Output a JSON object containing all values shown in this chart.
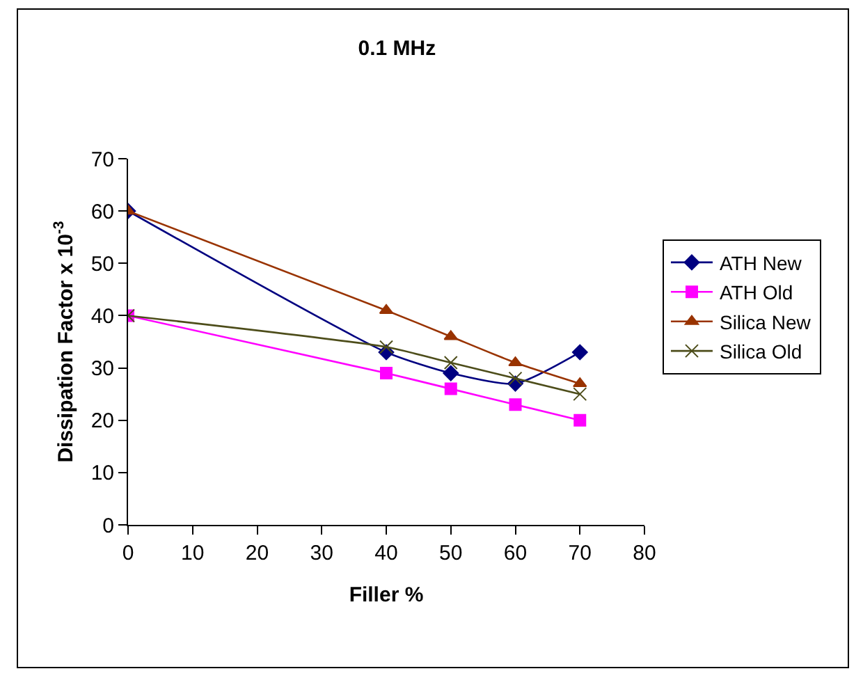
{
  "chart_data": {
    "type": "line",
    "title": "0.1 MHz",
    "xlabel": "Filler %",
    "ylabel": "Dissipation Factor x 10$^{-3}$",
    "x": [
      0,
      40,
      50,
      60,
      70
    ],
    "series": [
      {
        "name": "ATH New",
        "color": "#000080",
        "marker": "diamond",
        "values": [
          60,
          33,
          29,
          27,
          33
        ]
      },
      {
        "name": "ATH Old",
        "color": "#ff00ff",
        "marker": "square",
        "values": [
          40,
          29,
          26,
          23,
          20
        ]
      },
      {
        "name": "Silica New",
        "color": "#993300",
        "marker": "triangle",
        "values": [
          60,
          41,
          36,
          31,
          27
        ]
      },
      {
        "name": "Silica Old",
        "color": "#4d4d1a",
        "marker": "cross",
        "values": [
          40,
          34,
          31,
          28,
          25
        ]
      }
    ],
    "xlim": [
      0,
      80
    ],
    "xticks": [
      0,
      10,
      20,
      30,
      40,
      50,
      60,
      70,
      80
    ],
    "ylim": [
      0,
      70
    ],
    "yticks": [
      0,
      10,
      20,
      30,
      40,
      50,
      60,
      70
    ],
    "grid": false,
    "legend": "right",
    "line_style": "solid"
  }
}
